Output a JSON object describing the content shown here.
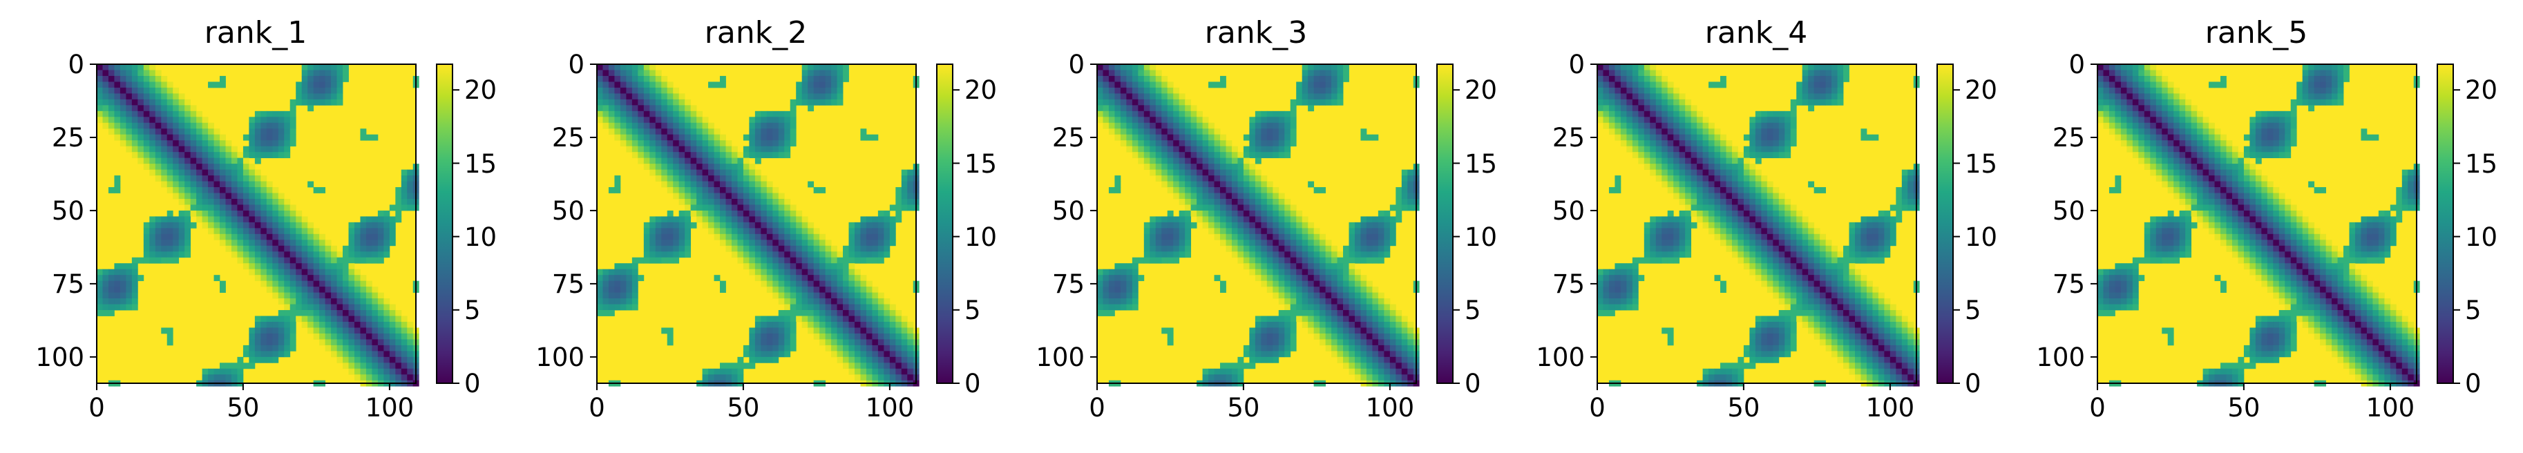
{
  "chart_data": [
    {
      "type": "heatmap",
      "title": "rank_1",
      "xlim": [
        0,
        109
      ],
      "ylim": [
        109,
        0
      ],
      "x_ticks": [
        "0",
        "50",
        "100"
      ],
      "y_ticks": [
        "0",
        "25",
        "50",
        "75",
        "100"
      ],
      "colorbar": {
        "colormap": "viridis",
        "range": [
          0,
          21.75
        ],
        "ticks": [
          "0",
          "5",
          "10",
          "15",
          "20"
        ]
      },
      "grid": false
    },
    {
      "type": "heatmap",
      "title": "rank_2",
      "xlim": [
        0,
        109
      ],
      "ylim": [
        109,
        0
      ],
      "x_ticks": [
        "0",
        "50",
        "100"
      ],
      "y_ticks": [
        "0",
        "25",
        "50",
        "75",
        "100"
      ],
      "colorbar": {
        "colormap": "viridis",
        "range": [
          0,
          21.75
        ],
        "ticks": [
          "0",
          "5",
          "10",
          "15",
          "20"
        ]
      },
      "grid": false
    },
    {
      "type": "heatmap",
      "title": "rank_3",
      "xlim": [
        0,
        109
      ],
      "ylim": [
        109,
        0
      ],
      "x_ticks": [
        "0",
        "50",
        "100"
      ],
      "y_ticks": [
        "0",
        "25",
        "50",
        "75",
        "100"
      ],
      "colorbar": {
        "colormap": "viridis",
        "range": [
          0,
          21.75
        ],
        "ticks": [
          "0",
          "5",
          "10",
          "15",
          "20"
        ]
      },
      "grid": false
    },
    {
      "type": "heatmap",
      "title": "rank_4",
      "xlim": [
        0,
        109
      ],
      "ylim": [
        109,
        0
      ],
      "x_ticks": [
        "0",
        "50",
        "100"
      ],
      "y_ticks": [
        "0",
        "25",
        "50",
        "75",
        "100"
      ],
      "colorbar": {
        "colormap": "viridis",
        "range": [
          0,
          21.75
        ],
        "ticks": [
          "0",
          "5",
          "10",
          "15",
          "20"
        ]
      },
      "grid": false
    },
    {
      "type": "heatmap",
      "title": "rank_5",
      "xlim": [
        0,
        109
      ],
      "ylim": [
        109,
        0
      ],
      "x_ticks": [
        "0",
        "50",
        "100"
      ],
      "y_ticks": [
        "0",
        "25",
        "50",
        "75",
        "100"
      ],
      "colorbar": {
        "colormap": "viridis",
        "range": [
          0,
          21.75
        ],
        "ticks": [
          "0",
          "5",
          "10",
          "15",
          "20"
        ]
      },
      "grid": false
    }
  ]
}
